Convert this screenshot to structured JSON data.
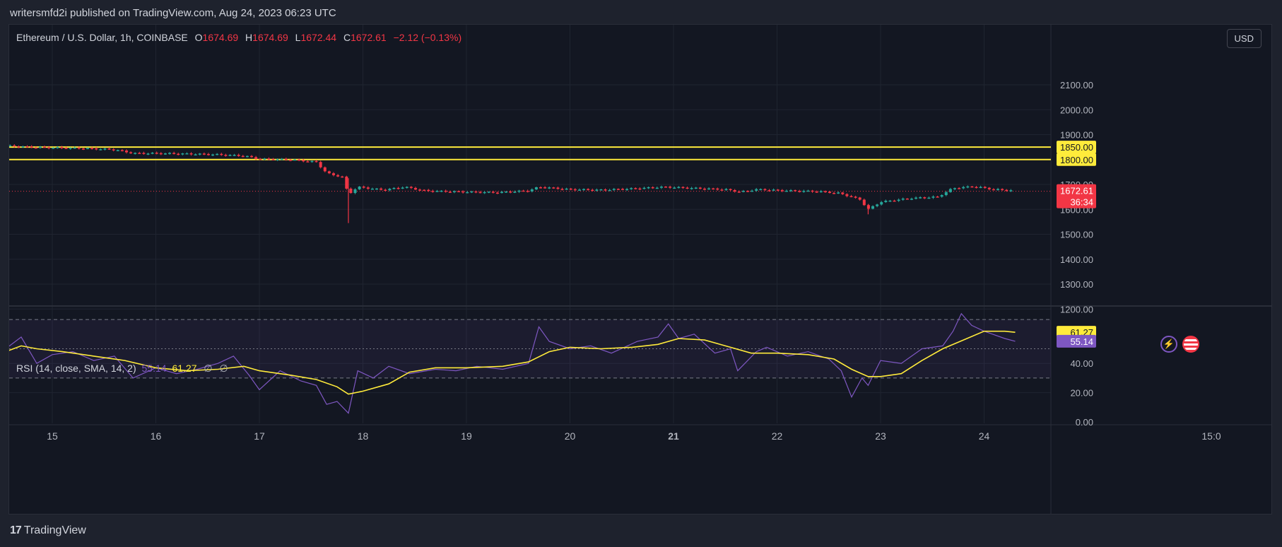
{
  "header": {
    "published": "writersmfd2i published on TradingView.com, Aug 24, 2023 06:23 UTC"
  },
  "legend": {
    "symbol": "Ethereum / U.S. Dollar, 1h, COINBASE",
    "o_label": "O",
    "o_value": "1674.69",
    "h_label": "H",
    "h_value": "1674.69",
    "l_label": "L",
    "l_value": "1672.44",
    "c_label": "C",
    "c_value": "1672.61",
    "change": "−2.12 (−0.13%)"
  },
  "currency_button": "USD",
  "rsi_legend": {
    "title": "RSI (14, close, SMA, 14, 2)",
    "rsi_value": "55.14",
    "sma_value": "61.27",
    "extra1": "∅",
    "extra2": "∅"
  },
  "price_axis": {
    "ticks": [
      "2100.00",
      "2000.00",
      "1900.00",
      "1800.00",
      "1700.00",
      "1600.00",
      "1500.00",
      "1400.00",
      "1300.00",
      "1200.00"
    ],
    "labels": {
      "line_upper": "1850.00",
      "line_lower": "1800.00",
      "last_price": "1672.61",
      "countdown": "36:34"
    }
  },
  "rsi_axis": {
    "ticks": [
      "40.00",
      "20.00",
      "0.00"
    ],
    "labels": {
      "sma": "61.27",
      "rsi": "55.14"
    }
  },
  "time_axis": {
    "ticks": [
      "15",
      "16",
      "17",
      "18",
      "19",
      "20",
      "21",
      "22",
      "23",
      "24",
      "15:0"
    ]
  },
  "footer": {
    "brand": "TradingView",
    "logo": "17"
  },
  "icons": {
    "lightning": "lightning-icon",
    "flag": "us-flag-icon"
  },
  "colors": {
    "up": "#26a69a",
    "down": "#f23645",
    "hline": "#ffeb3b",
    "rsi": "#7e57c2",
    "rsi_sma": "#ffeb3b",
    "bg": "#131722"
  },
  "chart_data": {
    "type": "candlestick",
    "title": "Ethereum / U.S. Dollar, 1h, COINBASE",
    "x": [
      "15",
      "16",
      "17",
      "18",
      "19",
      "20",
      "21",
      "22",
      "23",
      "24"
    ],
    "ylim": [
      1150,
      2200
    ],
    "horizontal_lines": [
      1850,
      1800
    ],
    "last_price": 1672.61,
    "price_series": [
      [
        14.55,
        1855
      ],
      [
        14.8,
        1850
      ],
      [
        15.0,
        1848
      ],
      [
        15.3,
        1845
      ],
      [
        15.6,
        1840
      ],
      [
        15.78,
        1825
      ],
      [
        16.0,
        1825
      ],
      [
        16.3,
        1823
      ],
      [
        16.6,
        1820
      ],
      [
        16.85,
        1815
      ],
      [
        17.0,
        1802
      ],
      [
        17.3,
        1800
      ],
      [
        17.55,
        1790
      ],
      [
        17.65,
        1745
      ],
      [
        17.8,
        1730
      ],
      [
        17.86,
        1660
      ],
      [
        17.95,
        1690
      ],
      [
        18.2,
        1678
      ],
      [
        18.4,
        1690
      ],
      [
        18.6,
        1675
      ],
      [
        18.8,
        1672
      ],
      [
        19.0,
        1670
      ],
      [
        19.3,
        1668
      ],
      [
        19.6,
        1675
      ],
      [
        19.7,
        1690
      ],
      [
        20.0,
        1680
      ],
      [
        20.3,
        1678
      ],
      [
        20.6,
        1683
      ],
      [
        20.9,
        1690
      ],
      [
        21.2,
        1685
      ],
      [
        21.5,
        1680
      ],
      [
        21.65,
        1670
      ],
      [
        21.8,
        1680
      ],
      [
        22.1,
        1675
      ],
      [
        22.4,
        1672
      ],
      [
        22.6,
        1665
      ],
      [
        22.8,
        1640
      ],
      [
        22.88,
        1600
      ],
      [
        23.0,
        1630
      ],
      [
        23.3,
        1645
      ],
      [
        23.55,
        1650
      ],
      [
        23.7,
        1685
      ],
      [
        23.9,
        1692
      ],
      [
        24.1,
        1680
      ],
      [
        24.3,
        1675
      ]
    ],
    "rsi_ylim": [
      0,
      100
    ],
    "rsi_levels": [
      70,
      50,
      30
    ],
    "rsi_series": [
      [
        14.55,
        50
      ],
      [
        14.7,
        58
      ],
      [
        14.85,
        40
      ],
      [
        15.0,
        46
      ],
      [
        15.2,
        48
      ],
      [
        15.4,
        42
      ],
      [
        15.6,
        45
      ],
      [
        15.78,
        30
      ],
      [
        16.0,
        37
      ],
      [
        16.2,
        33
      ],
      [
        16.4,
        36
      ],
      [
        16.6,
        40
      ],
      [
        16.75,
        45
      ],
      [
        16.9,
        32
      ],
      [
        17.0,
        22
      ],
      [
        17.2,
        35
      ],
      [
        17.4,
        28
      ],
      [
        17.55,
        25
      ],
      [
        17.65,
        12
      ],
      [
        17.75,
        14
      ],
      [
        17.86,
        6
      ],
      [
        17.95,
        35
      ],
      [
        18.1,
        30
      ],
      [
        18.25,
        38
      ],
      [
        18.45,
        33
      ],
      [
        18.7,
        36
      ],
      [
        18.9,
        35
      ],
      [
        19.1,
        38
      ],
      [
        19.35,
        36
      ],
      [
        19.6,
        40
      ],
      [
        19.7,
        65
      ],
      [
        19.8,
        55
      ],
      [
        20.0,
        50
      ],
      [
        20.2,
        52
      ],
      [
        20.4,
        47
      ],
      [
        20.65,
        55
      ],
      [
        20.85,
        58
      ],
      [
        20.95,
        67
      ],
      [
        21.05,
        57
      ],
      [
        21.2,
        60
      ],
      [
        21.4,
        47
      ],
      [
        21.55,
        50
      ],
      [
        21.62,
        35
      ],
      [
        21.8,
        48
      ],
      [
        21.9,
        51
      ],
      [
        22.1,
        45
      ],
      [
        22.3,
        48
      ],
      [
        22.5,
        43
      ],
      [
        22.62,
        35
      ],
      [
        22.72,
        17
      ],
      [
        22.82,
        30
      ],
      [
        22.88,
        25
      ],
      [
        23.0,
        42
      ],
      [
        23.2,
        40
      ],
      [
        23.4,
        50
      ],
      [
        23.6,
        52
      ],
      [
        23.7,
        62
      ],
      [
        23.78,
        74
      ],
      [
        23.88,
        66
      ],
      [
        24.0,
        62
      ],
      [
        24.2,
        57
      ],
      [
        24.3,
        55.14
      ]
    ],
    "rsi_sma_series": [
      [
        14.55,
        48
      ],
      [
        14.7,
        52
      ],
      [
        14.85,
        50
      ],
      [
        15.1,
        48
      ],
      [
        15.4,
        45
      ],
      [
        15.7,
        42
      ],
      [
        16.0,
        37
      ],
      [
        16.3,
        35
      ],
      [
        16.6,
        36
      ],
      [
        16.85,
        38
      ],
      [
        17.0,
        35
      ],
      [
        17.3,
        32
      ],
      [
        17.55,
        29
      ],
      [
        17.75,
        24
      ],
      [
        17.86,
        19
      ],
      [
        18.0,
        21
      ],
      [
        18.25,
        26
      ],
      [
        18.45,
        34
      ],
      [
        18.7,
        37
      ],
      [
        19.0,
        37
      ],
      [
        19.35,
        38
      ],
      [
        19.6,
        41
      ],
      [
        19.8,
        48
      ],
      [
        20.0,
        51
      ],
      [
        20.3,
        50
      ],
      [
        20.6,
        51
      ],
      [
        20.85,
        53
      ],
      [
        21.05,
        57
      ],
      [
        21.3,
        56
      ],
      [
        21.55,
        51
      ],
      [
        21.75,
        47
      ],
      [
        22.0,
        47
      ],
      [
        22.3,
        46
      ],
      [
        22.55,
        43
      ],
      [
        22.72,
        36
      ],
      [
        22.88,
        31
      ],
      [
        23.0,
        31
      ],
      [
        23.2,
        33
      ],
      [
        23.4,
        42
      ],
      [
        23.6,
        50
      ],
      [
        23.8,
        56
      ],
      [
        24.0,
        62
      ],
      [
        24.2,
        62
      ],
      [
        24.3,
        61.27
      ]
    ]
  }
}
